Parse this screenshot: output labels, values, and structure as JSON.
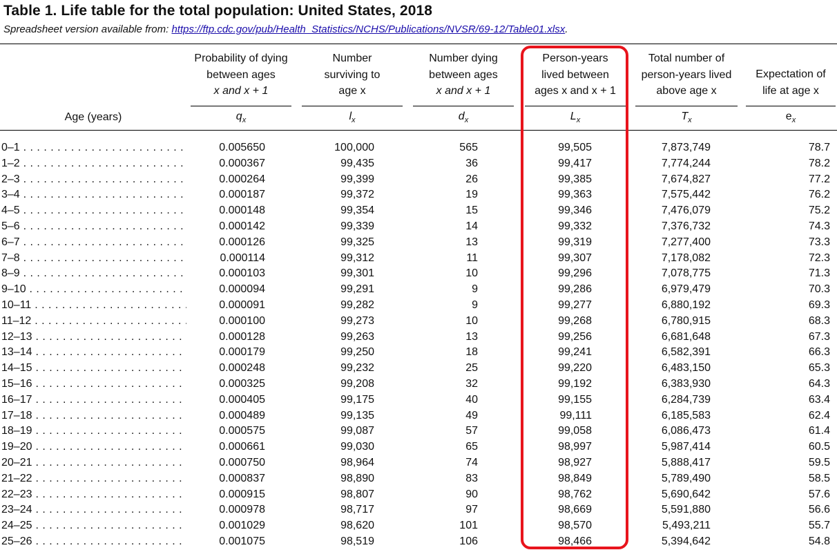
{
  "title": "Table 1. Life table for the total population: United States, 2018",
  "subtitle_prefix": "Spreadsheet version available from: ",
  "subtitle_link": "https://ftp.cdc.gov/pub/Health_Statistics/NCHS/Publications/NVSR/69-12/Table01.xlsx",
  "subtitle_suffix": ".",
  "columns": {
    "age": "Age (years)",
    "q": {
      "line1": "Probability of dying",
      "line2": "between ages",
      "line3": "x and x + 1",
      "symbol": "q",
      "sub": "x"
    },
    "l": {
      "line1": "Number",
      "line2": "surviving to",
      "line3": "age x",
      "symbol": "l",
      "sub": "x"
    },
    "d": {
      "line1": "Number dying",
      "line2": "between ages",
      "line3": "x and x + 1",
      "symbol": "d",
      "sub": "x"
    },
    "L": {
      "line1": "Person-years",
      "line2": "lived between",
      "line3": "ages x and x + 1",
      "symbol": "L",
      "sub": "x"
    },
    "T": {
      "line1": "Total number of",
      "line2": "person-years lived",
      "line3": "above age x",
      "symbol": "T",
      "sub": "x"
    },
    "e": {
      "line1": "Expectation of",
      "line2": "life at age x",
      "symbol": "e",
      "sub": "x"
    }
  },
  "highlight_color": "#e8141c",
  "rows": [
    [
      "0–1",
      "0.005650",
      "100,000",
      "565",
      "99,505",
      "7,873,749",
      "78.7"
    ],
    [
      "1–2",
      "0.000367",
      "99,435",
      "36",
      "99,417",
      "7,774,244",
      "78.2"
    ],
    [
      "2–3",
      "0.000264",
      "99,399",
      "26",
      "99,385",
      "7,674,827",
      "77.2"
    ],
    [
      "3–4",
      "0.000187",
      "99,372",
      "19",
      "99,363",
      "7,575,442",
      "76.2"
    ],
    [
      "4–5",
      "0.000148",
      "99,354",
      "15",
      "99,346",
      "7,476,079",
      "75.2"
    ],
    [
      "5–6",
      "0.000142",
      "99,339",
      "14",
      "99,332",
      "7,376,732",
      "74.3"
    ],
    [
      "6–7",
      "0.000126",
      "99,325",
      "13",
      "99,319",
      "7,277,400",
      "73.3"
    ],
    [
      "7–8",
      "0.000114",
      "99,312",
      "11",
      "99,307",
      "7,178,082",
      "72.3"
    ],
    [
      "8–9",
      "0.000103",
      "99,301",
      "10",
      "99,296",
      "7,078,775",
      "71.3"
    ],
    [
      "9–10",
      "0.000094",
      "99,291",
      "9",
      "99,286",
      "6,979,479",
      "70.3"
    ],
    [
      "10–11",
      "0.000091",
      "99,282",
      "9",
      "99,277",
      "6,880,192",
      "69.3"
    ],
    [
      "11–12",
      "0.000100",
      "99,273",
      "10",
      "99,268",
      "6,780,915",
      "68.3"
    ],
    [
      "12–13",
      "0.000128",
      "99,263",
      "13",
      "99,256",
      "6,681,648",
      "67.3"
    ],
    [
      "13–14",
      "0.000179",
      "99,250",
      "18",
      "99,241",
      "6,582,391",
      "66.3"
    ],
    [
      "14–15",
      "0.000248",
      "99,232",
      "25",
      "99,220",
      "6,483,150",
      "65.3"
    ],
    [
      "15–16",
      "0.000325",
      "99,208",
      "32",
      "99,192",
      "6,383,930",
      "64.3"
    ],
    [
      "16–17",
      "0.000405",
      "99,175",
      "40",
      "99,155",
      "6,284,739",
      "63.4"
    ],
    [
      "17–18",
      "0.000489",
      "99,135",
      "49",
      "99,111",
      "6,185,583",
      "62.4"
    ],
    [
      "18–19",
      "0.000575",
      "99,087",
      "57",
      "99,058",
      "6,086,473",
      "61.4"
    ],
    [
      "19–20",
      "0.000661",
      "99,030",
      "65",
      "98,997",
      "5,987,414",
      "60.5"
    ],
    [
      "20–21",
      "0.000750",
      "98,964",
      "74",
      "98,927",
      "5,888,417",
      "59.5"
    ],
    [
      "21–22",
      "0.000837",
      "98,890",
      "83",
      "98,849",
      "5,789,490",
      "58.5"
    ],
    [
      "22–23",
      "0.000915",
      "98,807",
      "90",
      "98,762",
      "5,690,642",
      "57.6"
    ],
    [
      "23–24",
      "0.000978",
      "98,717",
      "97",
      "98,669",
      "5,591,880",
      "56.6"
    ],
    [
      "24–25",
      "0.001029",
      "98,620",
      "101",
      "98,570",
      "5,493,211",
      "55.7"
    ],
    [
      "25–26",
      "0.001075",
      "98,519",
      "106",
      "98,466",
      "5,394,642",
      "54.8"
    ]
  ]
}
